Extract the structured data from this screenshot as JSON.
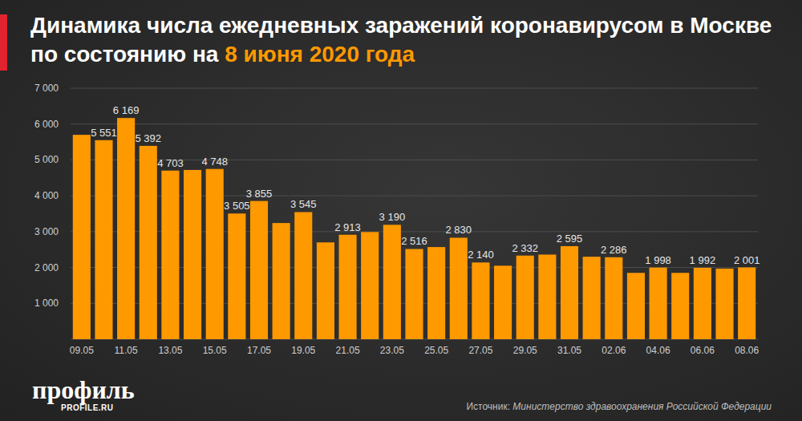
{
  "chart_data": {
    "type": "bar",
    "title": "Динамика числа ежедневных заражений коронавирусом в Москве по состоянию на",
    "title_highlight": "8 июня 2020 года",
    "source_label": "Источник:",
    "source": "Министерство здравоохранения Российской Федерации",
    "brand": "профиль",
    "brand_site": "PROFILE.RU",
    "categories": [
      "09.05",
      null,
      "11.05",
      null,
      "13.05",
      null,
      "15.05",
      null,
      "17.05",
      null,
      "19.05",
      null,
      "21.05",
      null,
      "23.05",
      null,
      "25.05",
      null,
      "27.05",
      null,
      "29.05",
      null,
      "31.05",
      null,
      "02.06",
      null,
      "04.06",
      null,
      "06.06",
      null,
      "08.06"
    ],
    "values": [
      5700,
      5551,
      6169,
      5392,
      4703,
      4720,
      4748,
      3505,
      3855,
      3240,
      3545,
      2700,
      2913,
      2990,
      3190,
      2516,
      2570,
      2830,
      2140,
      2050,
      2332,
      2360,
      2595,
      2300,
      2286,
      1850,
      1998,
      1850,
      1992,
      1970,
      2001
    ],
    "value_labels": [
      null,
      "5 551",
      "6 169",
      "5 392",
      "4 703",
      null,
      "4 748",
      "3 505",
      "3 855",
      null,
      "3 545",
      null,
      "2 913",
      null,
      "3 190",
      "2 516",
      null,
      "2 830",
      "2 140",
      null,
      "2 332",
      null,
      "2 595",
      null,
      "2 286",
      null,
      "1 998",
      null,
      "1 992",
      null,
      "2 001"
    ],
    "color": "#ff9900",
    "data_labels": true,
    "grid": true,
    "ylim": [
      0,
      7000
    ],
    "yticks": [
      {
        "value": 1000,
        "label": "1 000"
      },
      {
        "value": 2000,
        "label": "2 000"
      },
      {
        "value": 3000,
        "label": "3 000"
      },
      {
        "value": 4000,
        "label": "4 000"
      },
      {
        "value": 5000,
        "label": "5 000"
      },
      {
        "value": 6000,
        "label": "6 000"
      },
      {
        "value": 7000,
        "label": "7 000"
      }
    ]
  }
}
